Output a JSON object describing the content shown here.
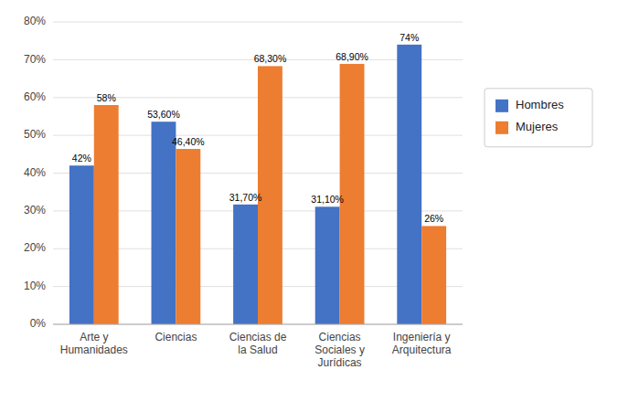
{
  "chart_data": {
    "type": "bar",
    "categories": [
      "Arte y\nHumanidades",
      "Ciencias",
      "Ciencias de\nla Salud",
      "Ciencias\nSociales y\nJurídicas",
      "Ingeniería y\nArquitectura"
    ],
    "series": [
      {
        "name": "Hombres",
        "color": "#4472C4",
        "values": [
          42,
          53.6,
          31.7,
          31.1,
          74
        ],
        "value_labels": [
          "42%",
          "53,60%",
          "31,70%",
          "31,10%",
          "74%"
        ]
      },
      {
        "name": "Mujeres",
        "color": "#ED7D31",
        "values": [
          58,
          46.4,
          68.3,
          68.9,
          26
        ],
        "value_labels": [
          "58%",
          "46,40%",
          "68,30%",
          "68,90%",
          "26%"
        ]
      }
    ],
    "ylim": [
      0,
      80
    ],
    "yticks": [
      {
        "value": 0,
        "label": "0%"
      },
      {
        "value": 10,
        "label": "10%"
      },
      {
        "value": 20,
        "label": "20%"
      },
      {
        "value": 30,
        "label": "30%"
      },
      {
        "value": 40,
        "label": "40%"
      },
      {
        "value": 50,
        "label": "50%"
      },
      {
        "value": 60,
        "label": "60%"
      },
      {
        "value": 70,
        "label": "70%"
      },
      {
        "value": 80,
        "label": "80%"
      }
    ],
    "grid": true,
    "legend": "right",
    "data_labels": true
  }
}
